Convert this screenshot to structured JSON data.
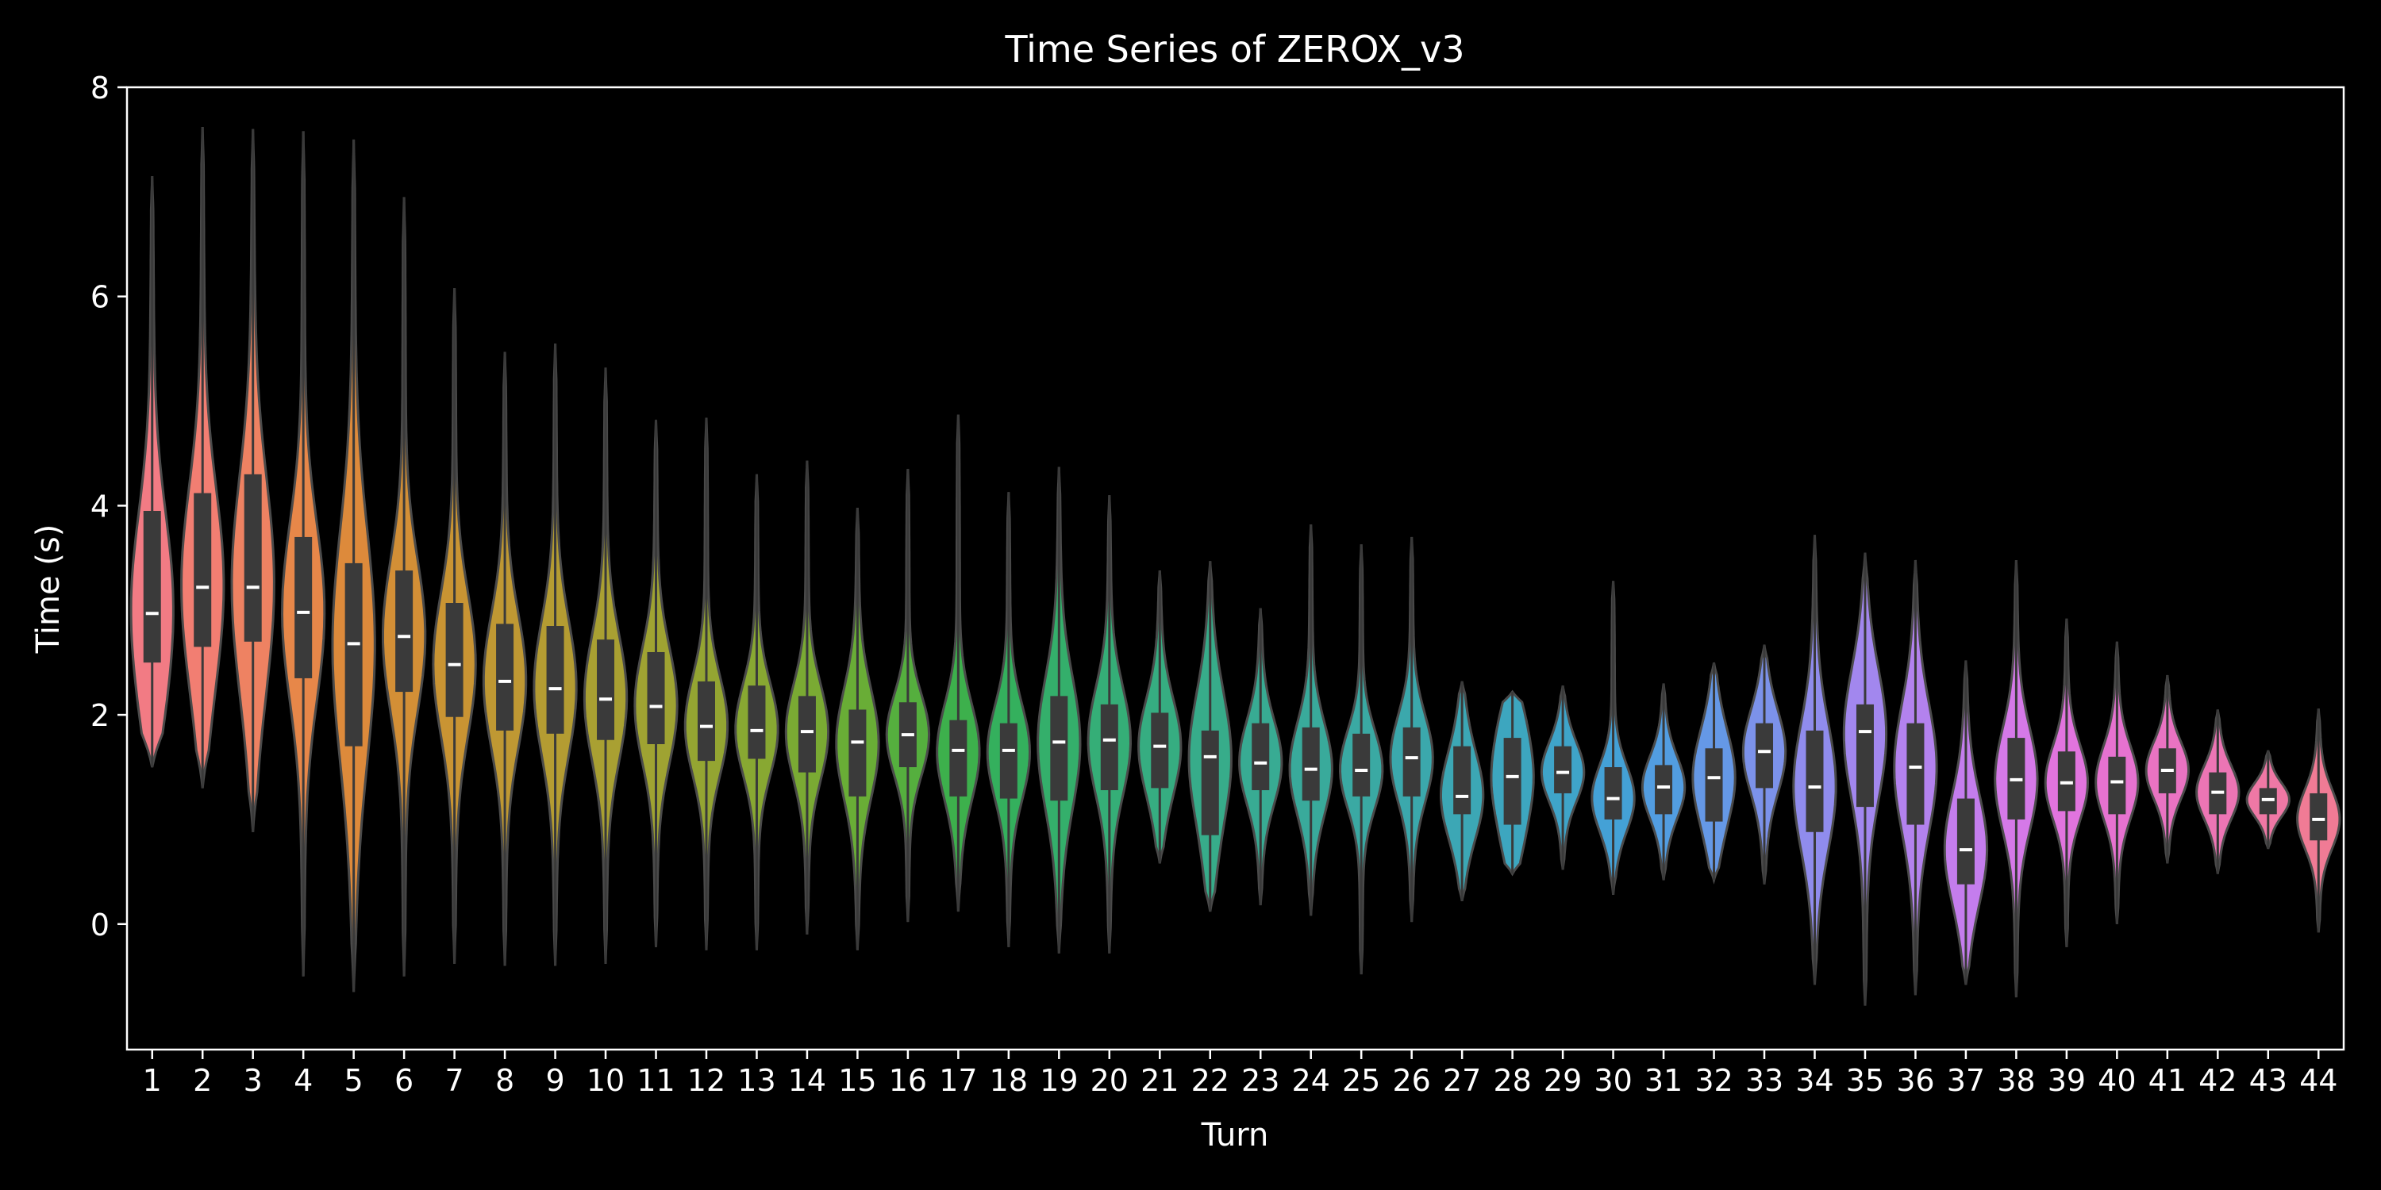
{
  "chart_data": {
    "type": "violin",
    "title": "Time Series of ZEROX_v3",
    "xlabel": "Turn",
    "ylabel": "Time (s)",
    "ylim": [
      -1.2,
      8.0
    ],
    "yticks": [
      0,
      2,
      4,
      6,
      8
    ],
    "grid": false,
    "legend": "none",
    "colors": {
      "background": "#000000",
      "axes": "#ffffff",
      "text": "#ffffff",
      "inner_box": "#3a3a3a",
      "median": "#ffffff",
      "outline": "#4a4a4a"
    },
    "series": [
      {
        "turn": "1",
        "min": 1.5,
        "q1": 2.5,
        "median": 2.97,
        "q3": 3.95,
        "max": 7.15,
        "color": "#f27b84"
      },
      {
        "turn": "2",
        "min": 1.3,
        "q1": 2.65,
        "median": 3.22,
        "q3": 4.12,
        "max": 7.62,
        "color": "#f27e72"
      },
      {
        "turn": "3",
        "min": 0.88,
        "q1": 2.7,
        "median": 3.22,
        "q3": 4.3,
        "max": 7.6,
        "color": "#ee8262"
      },
      {
        "turn": "4",
        "min": -0.5,
        "q1": 2.35,
        "median": 2.98,
        "q3": 3.7,
        "max": 7.58,
        "color": "#e78749"
      },
      {
        "turn": "5",
        "min": -0.65,
        "q1": 1.7,
        "median": 2.68,
        "q3": 3.45,
        "max": 7.5,
        "color": "#dd8a3b"
      },
      {
        "turn": "6",
        "min": -0.5,
        "q1": 2.22,
        "median": 2.75,
        "q3": 3.38,
        "max": 6.95,
        "color": "#d38f36"
      },
      {
        "turn": "7",
        "min": -0.38,
        "q1": 1.98,
        "median": 2.48,
        "q3": 3.07,
        "max": 6.08,
        "color": "#c99433"
      },
      {
        "turn": "8",
        "min": -0.4,
        "q1": 1.85,
        "median": 2.32,
        "q3": 2.87,
        "max": 5.47,
        "color": "#bf9833"
      },
      {
        "turn": "9",
        "min": -0.4,
        "q1": 1.82,
        "median": 2.25,
        "q3": 2.85,
        "max": 5.55,
        "color": "#b49c32"
      },
      {
        "turn": "10",
        "min": -0.38,
        "q1": 1.76,
        "median": 2.15,
        "q3": 2.72,
        "max": 5.32,
        "color": "#a9a032"
      },
      {
        "turn": "11",
        "min": -0.22,
        "q1": 1.72,
        "median": 2.08,
        "q3": 2.6,
        "max": 4.82,
        "color": "#9fa332"
      },
      {
        "turn": "12",
        "min": -0.25,
        "q1": 1.56,
        "median": 1.89,
        "q3": 2.32,
        "max": 4.84,
        "color": "#94a532"
      },
      {
        "turn": "13",
        "min": -0.25,
        "q1": 1.58,
        "median": 1.85,
        "q3": 2.28,
        "max": 4.3,
        "color": "#88a832"
      },
      {
        "turn": "14",
        "min": -0.1,
        "q1": 1.45,
        "median": 1.84,
        "q3": 2.18,
        "max": 4.43,
        "color": "#7aaa33"
      },
      {
        "turn": "15",
        "min": -0.25,
        "q1": 1.22,
        "median": 1.74,
        "q3": 2.05,
        "max": 3.98,
        "color": "#69ad36"
      },
      {
        "turn": "16",
        "min": 0.02,
        "q1": 1.5,
        "median": 1.81,
        "q3": 2.12,
        "max": 4.35,
        "color": "#55af3e"
      },
      {
        "turn": "17",
        "min": 0.12,
        "q1": 1.22,
        "median": 1.66,
        "q3": 1.95,
        "max": 4.87,
        "color": "#3db04c"
      },
      {
        "turn": "18",
        "min": -0.22,
        "q1": 1.2,
        "median": 1.66,
        "q3": 1.92,
        "max": 4.13,
        "color": "#34b05d"
      },
      {
        "turn": "19",
        "min": -0.28,
        "q1": 1.18,
        "median": 1.74,
        "q3": 2.18,
        "max": 4.37,
        "color": "#34af6b"
      },
      {
        "turn": "20",
        "min": -0.28,
        "q1": 1.28,
        "median": 1.76,
        "q3": 2.1,
        "max": 4.1,
        "color": "#35ae77"
      },
      {
        "turn": "21",
        "min": 0.58,
        "q1": 1.3,
        "median": 1.7,
        "q3": 2.02,
        "max": 3.38,
        "color": "#36ad81"
      },
      {
        "turn": "22",
        "min": 0.12,
        "q1": 0.85,
        "median": 1.6,
        "q3": 1.85,
        "max": 3.47,
        "color": "#37ac8a"
      },
      {
        "turn": "23",
        "min": 0.18,
        "q1": 1.28,
        "median": 1.54,
        "q3": 1.92,
        "max": 3.02,
        "color": "#38ab93"
      },
      {
        "turn": "24",
        "min": 0.08,
        "q1": 1.18,
        "median": 1.48,
        "q3": 1.88,
        "max": 3.82,
        "color": "#39aa9b"
      },
      {
        "turn": "25",
        "min": -0.48,
        "q1": 1.22,
        "median": 1.47,
        "q3": 1.82,
        "max": 3.63,
        "color": "#3aa9a3"
      },
      {
        "turn": "26",
        "min": 0.02,
        "q1": 1.22,
        "median": 1.59,
        "q3": 1.88,
        "max": 3.7,
        "color": "#3ba8ac"
      },
      {
        "turn": "27",
        "min": 0.22,
        "q1": 1.05,
        "median": 1.22,
        "q3": 1.7,
        "max": 2.32,
        "color": "#3ca7b5"
      },
      {
        "turn": "28",
        "min": 0.48,
        "q1": 0.95,
        "median": 1.41,
        "q3": 1.78,
        "max": 2.22,
        "color": "#3da6bf"
      },
      {
        "turn": "29",
        "min": 0.52,
        "q1": 1.25,
        "median": 1.45,
        "q3": 1.7,
        "max": 2.28,
        "color": "#3fa4c9"
      },
      {
        "turn": "30",
        "min": 0.28,
        "q1": 1.0,
        "median": 1.2,
        "q3": 1.5,
        "max": 3.28,
        "color": "#44a1d6"
      },
      {
        "turn": "31",
        "min": 0.42,
        "q1": 1.05,
        "median": 1.31,
        "q3": 1.52,
        "max": 2.3,
        "color": "#529de1"
      },
      {
        "turn": "32",
        "min": 0.42,
        "q1": 0.98,
        "median": 1.4,
        "q3": 1.68,
        "max": 2.5,
        "color": "#6598e6"
      },
      {
        "turn": "33",
        "min": 0.38,
        "q1": 1.3,
        "median": 1.65,
        "q3": 1.92,
        "max": 2.67,
        "color": "#7c92ea"
      },
      {
        "turn": "34",
        "min": -0.58,
        "q1": 0.88,
        "median": 1.31,
        "q3": 1.85,
        "max": 3.72,
        "color": "#908ced"
      },
      {
        "turn": "35",
        "min": -0.78,
        "q1": 1.12,
        "median": 1.84,
        "q3": 2.1,
        "max": 3.55,
        "color": "#a287ee"
      },
      {
        "turn": "36",
        "min": -0.68,
        "q1": 0.95,
        "median": 1.5,
        "q3": 1.92,
        "max": 3.48,
        "color": "#b382ee"
      },
      {
        "turn": "37",
        "min": -0.58,
        "q1": 0.38,
        "median": 0.71,
        "q3": 1.2,
        "max": 2.52,
        "color": "#c47ded"
      },
      {
        "turn": "38",
        "min": -0.7,
        "q1": 1.0,
        "median": 1.38,
        "q3": 1.78,
        "max": 3.48,
        "color": "#d579e8"
      },
      {
        "turn": "39",
        "min": -0.22,
        "q1": 1.08,
        "median": 1.35,
        "q3": 1.65,
        "max": 2.92,
        "color": "#e174de"
      },
      {
        "turn": "40",
        "min": 0.0,
        "q1": 1.05,
        "median": 1.36,
        "q3": 1.6,
        "max": 2.7,
        "color": "#e672d0"
      },
      {
        "turn": "41",
        "min": 0.58,
        "q1": 1.25,
        "median": 1.47,
        "q3": 1.68,
        "max": 2.38,
        "color": "#e973c2"
      },
      {
        "turn": "42",
        "min": 0.48,
        "q1": 1.05,
        "median": 1.26,
        "q3": 1.45,
        "max": 2.05,
        "color": "#ec75b4"
      },
      {
        "turn": "43",
        "min": 0.72,
        "q1": 1.05,
        "median": 1.19,
        "q3": 1.3,
        "max": 1.66,
        "color": "#ef78a5"
      },
      {
        "turn": "44",
        "min": -0.08,
        "q1": 0.8,
        "median": 1.0,
        "q3": 1.25,
        "max": 2.06,
        "color": "#f07b95"
      }
    ]
  }
}
